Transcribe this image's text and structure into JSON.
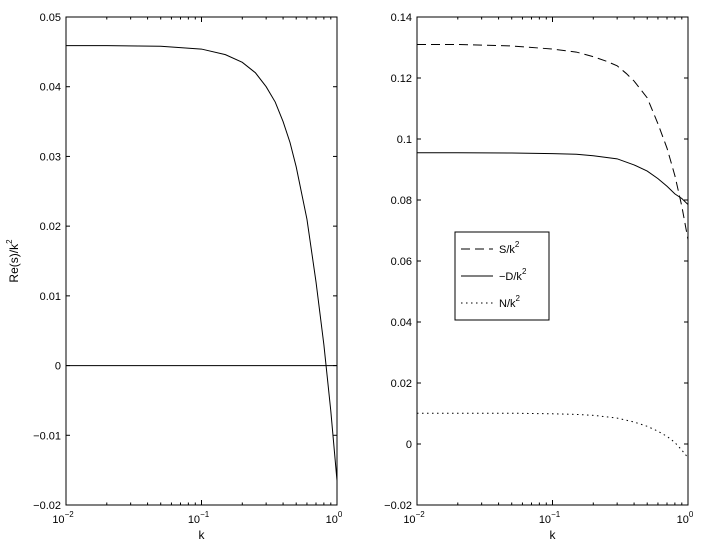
{
  "chart_data": [
    {
      "type": "line",
      "xscale": "log",
      "xlim": [
        0.01,
        1
      ],
      "ylim": [
        -0.02,
        0.05
      ],
      "xlabel": "k",
      "ylabel": {
        "base": "Re(s)/k",
        "sup": "2"
      },
      "xticks": [
        {
          "value": 0.01,
          "base": "10",
          "exp": "−2"
        },
        {
          "value": 0.1,
          "base": "10",
          "exp": "−1"
        },
        {
          "value": 1,
          "base": "10",
          "exp": "0"
        }
      ],
      "yticks": [
        {
          "value": -0.02,
          "label": "−0.02"
        },
        {
          "value": -0.01,
          "label": "−0.01"
        },
        {
          "value": 0,
          "label": "0"
        },
        {
          "value": 0.01,
          "label": "0.01"
        },
        {
          "value": 0.02,
          "label": "0.02"
        },
        {
          "value": 0.03,
          "label": "0.03"
        },
        {
          "value": 0.04,
          "label": "0.04"
        },
        {
          "value": 0.05,
          "label": "0.05"
        }
      ],
      "series": [
        {
          "style": "solid",
          "x": [
            0.01,
            0.02,
            0.05,
            0.1,
            0.15,
            0.2,
            0.25,
            0.3,
            0.35,
            0.4,
            0.45,
            0.5,
            0.6,
            0.7,
            0.8,
            0.9,
            1.0
          ],
          "y": [
            0.0459,
            0.0459,
            0.0458,
            0.0454,
            0.0446,
            0.0435,
            0.042,
            0.04,
            0.0378,
            0.035,
            0.032,
            0.0285,
            0.021,
            0.012,
            0.003,
            -0.0065,
            -0.0165
          ]
        },
        {
          "style": "solid",
          "x": [
            0.01,
            1.0
          ],
          "y": [
            0,
            0
          ]
        }
      ]
    },
    {
      "type": "line",
      "xscale": "log",
      "xlim": [
        0.01,
        1
      ],
      "ylim": [
        -0.02,
        0.14
      ],
      "xlabel": "k",
      "xticks": [
        {
          "value": 0.01,
          "base": "10",
          "exp": "−2"
        },
        {
          "value": 0.1,
          "base": "10",
          "exp": "−1"
        },
        {
          "value": 1,
          "base": "10",
          "exp": "0"
        }
      ],
      "yticks": [
        {
          "value": -0.02,
          "label": "−0.02"
        },
        {
          "value": 0,
          "label": "0"
        },
        {
          "value": 0.02,
          "label": "0.02"
        },
        {
          "value": 0.04,
          "label": "0.04"
        },
        {
          "value": 0.06,
          "label": "0.06"
        },
        {
          "value": 0.08,
          "label": "0.08"
        },
        {
          "value": 0.1,
          "label": "0.1"
        },
        {
          "value": 0.12,
          "label": "0.12"
        },
        {
          "value": 0.14,
          "label": "0.14"
        }
      ],
      "legend": {
        "position": "center-left",
        "entries": [
          {
            "style": "dashed",
            "base": "S/k",
            "sup": "2"
          },
          {
            "style": "solid",
            "base": "−D/k",
            "sup": "2"
          },
          {
            "style": "dotted",
            "base": "N/k",
            "sup": "2"
          }
        ]
      },
      "series": [
        {
          "style": "dashed",
          "x": [
            0.01,
            0.02,
            0.05,
            0.1,
            0.15,
            0.2,
            0.25,
            0.3,
            0.35,
            0.4,
            0.5,
            0.6,
            0.7,
            0.8,
            0.9,
            1.0
          ],
          "y": [
            0.131,
            0.131,
            0.1305,
            0.1295,
            0.1285,
            0.127,
            0.1255,
            0.124,
            0.1215,
            0.119,
            0.1135,
            0.105,
            0.097,
            0.088,
            0.078,
            0.067
          ]
        },
        {
          "style": "solid",
          "x": [
            0.01,
            0.02,
            0.05,
            0.1,
            0.15,
            0.2,
            0.3,
            0.4,
            0.5,
            0.6,
            0.7,
            0.8,
            0.9,
            1.0
          ],
          "y": [
            0.0955,
            0.0955,
            0.0954,
            0.0952,
            0.095,
            0.0945,
            0.0935,
            0.0915,
            0.0895,
            0.087,
            0.0845,
            0.082,
            0.0805,
            0.0785
          ]
        },
        {
          "style": "dotted",
          "x": [
            0.01,
            0.02,
            0.05,
            0.1,
            0.15,
            0.2,
            0.3,
            0.4,
            0.5,
            0.6,
            0.7,
            0.8,
            0.9,
            1.0
          ],
          "y": [
            0.0101,
            0.0101,
            0.0101,
            0.0099,
            0.0097,
            0.0094,
            0.0085,
            0.0072,
            0.0058,
            0.0042,
            0.0025,
            0.0005,
            -0.002,
            -0.0045
          ]
        }
      ]
    }
  ]
}
